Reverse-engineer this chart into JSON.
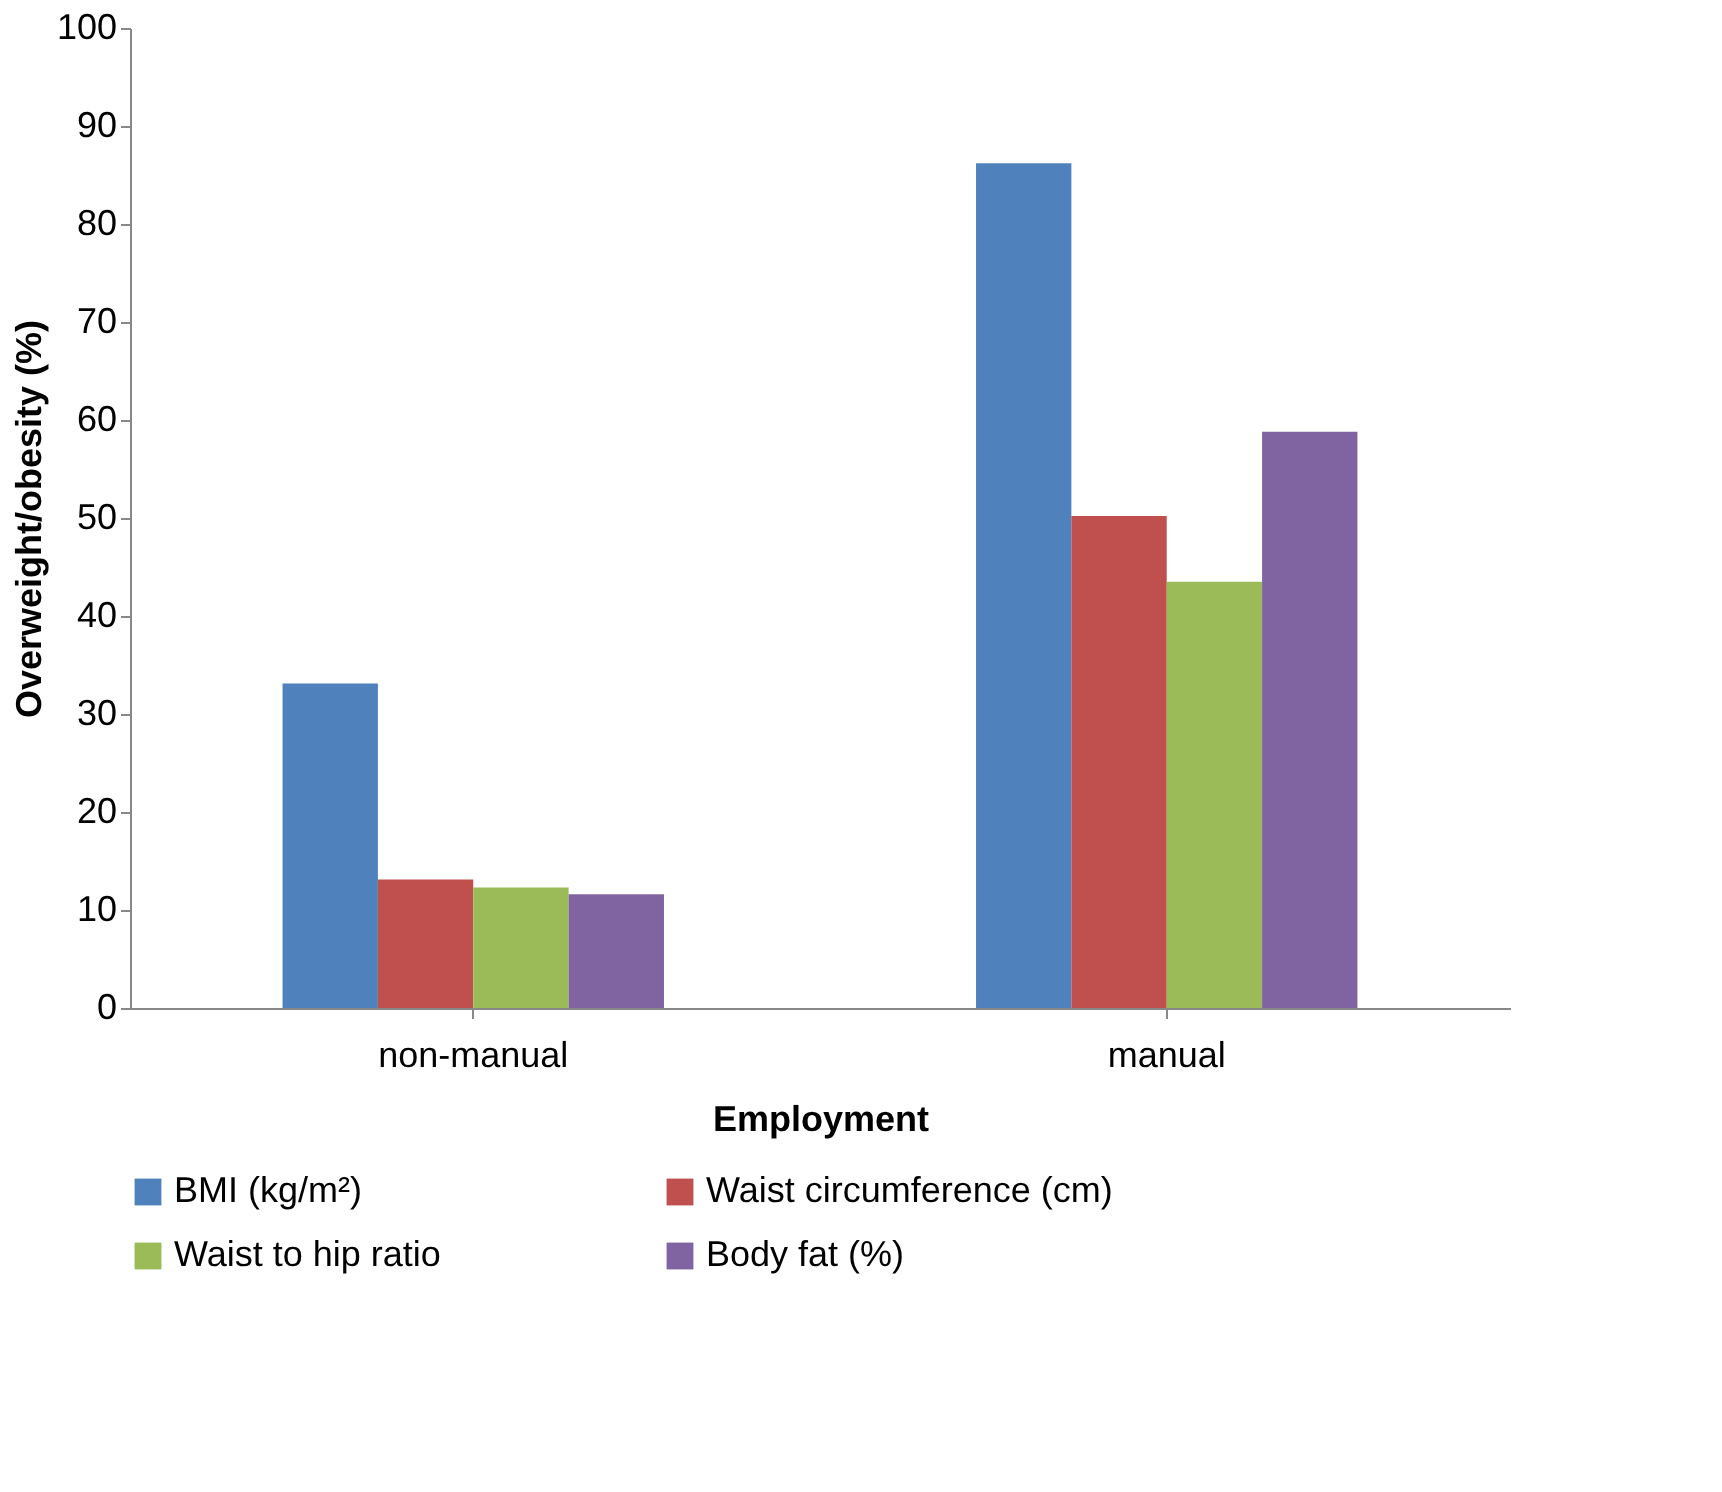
{
  "chart_data": {
    "type": "bar",
    "xlabel": "Employment",
    "ylabel": "Overweight/obesity (%)",
    "categories": [
      "non-manual",
      "manual"
    ],
    "series": [
      {
        "name": "BMI (kg/m²)",
        "color": "#4f81bd",
        "values": [
          33.1,
          86.2
        ]
      },
      {
        "name": "Waist circumference (cm)",
        "color": "#c0504d",
        "values": [
          13.1,
          50.2
        ]
      },
      {
        "name": "Waist to hip ratio",
        "color": "#9bbb59",
        "values": [
          12.3,
          43.5
        ]
      },
      {
        "name": "Body fat (%)",
        "color": "#8064a2",
        "values": [
          11.6,
          58.8
        ]
      }
    ],
    "ylim": [
      0,
      100
    ],
    "yticks": [
      0,
      10,
      20,
      30,
      40,
      50,
      60,
      70,
      80,
      90,
      100
    ],
    "grid": false,
    "legend": "bottom"
  }
}
